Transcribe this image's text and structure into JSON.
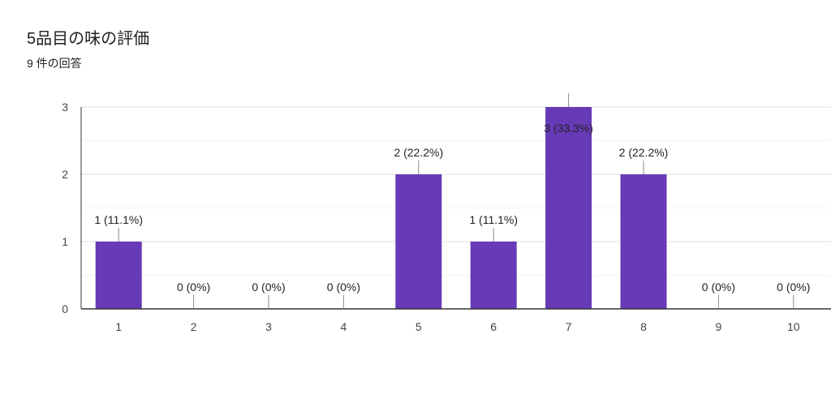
{
  "header": {
    "title": "5品目の味の評価",
    "subtitle": "9 件の回答"
  },
  "chart_data": {
    "type": "bar",
    "categories": [
      "1",
      "2",
      "3",
      "4",
      "5",
      "6",
      "7",
      "8",
      "9",
      "10"
    ],
    "values": [
      1,
      0,
      0,
      0,
      2,
      1,
      3,
      2,
      0,
      0
    ],
    "data_labels": [
      "1 (11.1%)",
      "0 (0%)",
      "0 (0%)",
      "0 (0%)",
      "2 (22.2%)",
      "1 (11.1%)",
      "3 (33.3%)",
      "2 (22.2%)",
      "0 (0%)",
      "0 (0%)"
    ],
    "y_ticks": [
      0,
      1,
      2,
      3
    ],
    "ylim": [
      0,
      3
    ],
    "grid": true,
    "bar_color": "#673ab7",
    "title": "5品目の味の評価",
    "xlabel": "",
    "ylabel": ""
  }
}
